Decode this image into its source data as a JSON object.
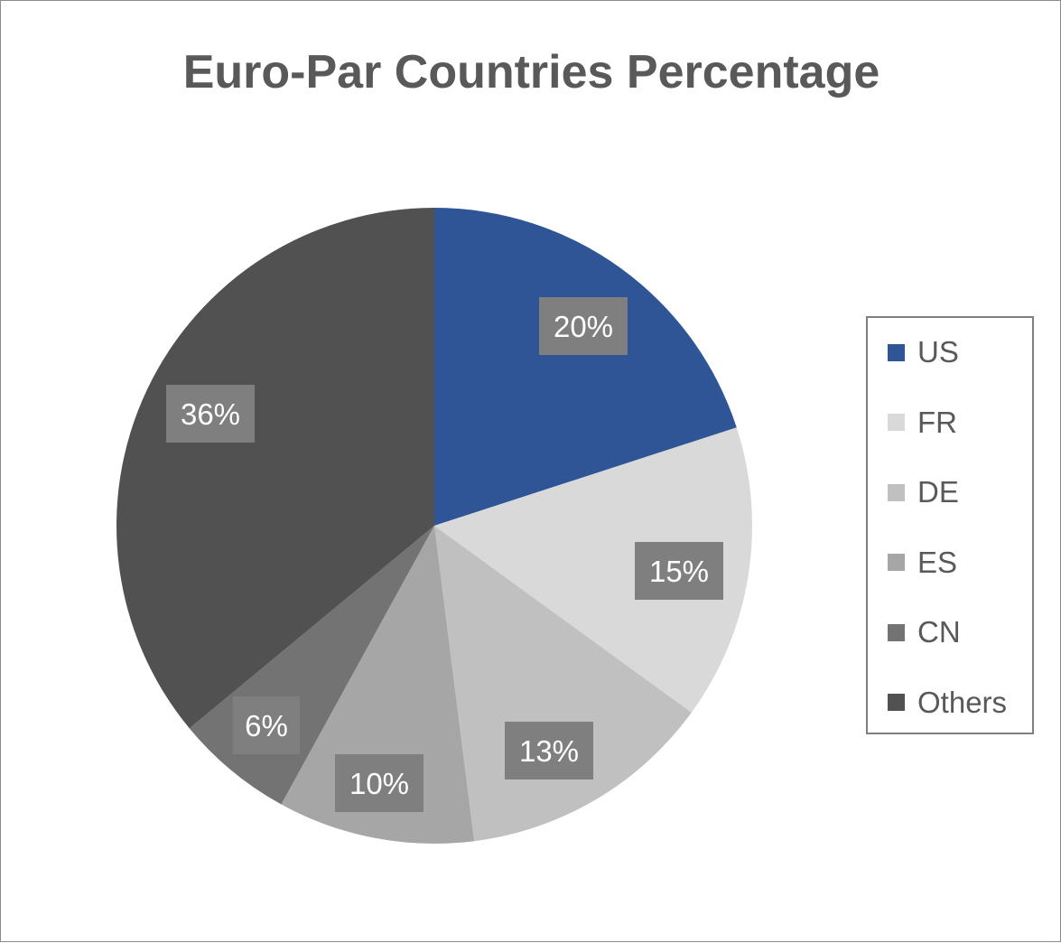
{
  "chart_data": {
    "type": "pie",
    "title": "Euro-Par Countries Percentage",
    "categories": [
      "US",
      "FR",
      "DE",
      "ES",
      "CN",
      "Others"
    ],
    "values": [
      20,
      15,
      13,
      10,
      6,
      36
    ],
    "data_labels": [
      "20%",
      "15%",
      "13%",
      "10%",
      "6%",
      "36%"
    ],
    "colors": [
      "#2f5597",
      "#d9d9d9",
      "#c0c0c0",
      "#a6a6a6",
      "#737373",
      "#515151"
    ],
    "label_box_color": "#7f7f7f",
    "legend_position": "right"
  }
}
